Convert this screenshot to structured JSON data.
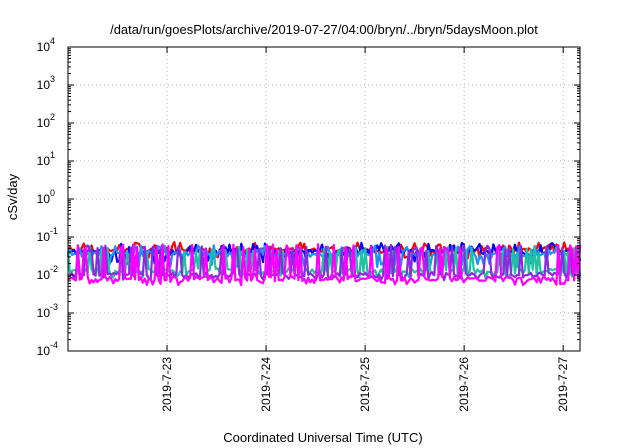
{
  "chart_data": {
    "type": "line",
    "title": "/data/run/goesPlots/archive/2019-07-27/04:00/bryn/../bryn/5daysMoon.plot",
    "xlabel": "Coordinated Universal Time (UTC)",
    "ylabel": "cSv/day",
    "x_range_days": [
      0,
      5.17
    ],
    "x_ticks": [
      {
        "day": 1.0,
        "label": "2019-7-23"
      },
      {
        "day": 2.0,
        "label": "2019-7-24"
      },
      {
        "day": 3.0,
        "label": "2019-7-25"
      },
      {
        "day": 4.0,
        "label": "2019-7-26"
      },
      {
        "day": 5.0,
        "label": "2019-7-27"
      }
    ],
    "y_scale": "log",
    "ylim": [
      0.0001,
      10000
    ],
    "y_ticks": [
      {
        "base": "10",
        "exp": "4",
        "value": 10000
      },
      {
        "base": "10",
        "exp": "3",
        "value": 1000
      },
      {
        "base": "10",
        "exp": "2",
        "value": 100
      },
      {
        "base": "10",
        "exp": "1",
        "value": 10
      },
      {
        "base": "10",
        "exp": "0",
        "value": 1
      },
      {
        "base": "10",
        "exp": "-1",
        "value": 0.1
      },
      {
        "base": "10",
        "exp": "-2",
        "value": 0.01
      },
      {
        "base": "10",
        "exp": "-3",
        "value": 0.001
      },
      {
        "base": "10",
        "exp": "-4",
        "value": 0.0001
      }
    ],
    "grid": true,
    "series": [
      {
        "color": "#ff0000",
        "baseline": 0.045,
        "dip": 0.03,
        "peak": 0.075,
        "phase": 0
      },
      {
        "color": "#0000ff",
        "baseline": 0.04,
        "dip": 0.022,
        "peak": 0.07,
        "phase": 1
      },
      {
        "color": "#1e90ff",
        "baseline": 0.035,
        "dip": 0.018,
        "peak": 0.06,
        "phase": 2
      },
      {
        "color": "#20c0a0",
        "baseline": 0.013,
        "dip": 0.009,
        "peak": 0.055,
        "phase": 3
      },
      {
        "color": "#8a2be2",
        "baseline": 0.01,
        "dip": 0.008,
        "peak": 0.06,
        "phase": 4
      },
      {
        "color": "#ff00ff",
        "baseline": 0.008,
        "dip": 0.006,
        "peak": 0.065,
        "phase": 5
      }
    ]
  }
}
